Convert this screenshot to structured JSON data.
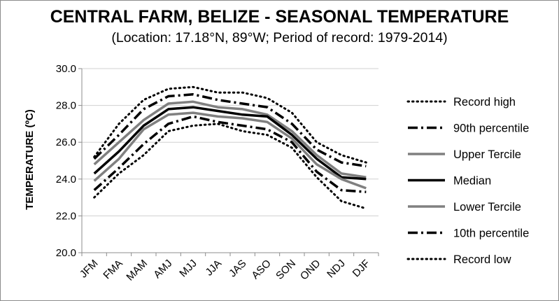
{
  "chart_data": {
    "type": "line",
    "title": "CENTRAL FARM, BELIZE - SEASONAL TEMPERATURE",
    "subtitle": "(Location: 17.18°N, 89°W; Period of record: 1979-2014)",
    "xlabel": "",
    "ylabel": "TEMPERATURE (ºC)",
    "ylim": [
      20.0,
      30.0
    ],
    "yticks": [
      "20.0",
      "22.0",
      "24.0",
      "26.0",
      "28.0",
      "30.0"
    ],
    "ytick_values": [
      20,
      22,
      24,
      26,
      28,
      30
    ],
    "grid": "horizontal",
    "legend_position": "right",
    "categories": [
      "JFM",
      "FMA",
      "MAM",
      "AMJ",
      "MJJ",
      "JJA",
      "JAS",
      "ASO",
      "SON",
      "OND",
      "NDJ",
      "DJF"
    ],
    "series": [
      {
        "name": "Record high",
        "color": "#000000",
        "style": "dotted",
        "values": [
          25.2,
          27.0,
          28.3,
          28.9,
          29.0,
          28.7,
          28.7,
          28.4,
          27.6,
          26.0,
          25.3,
          24.9
        ]
      },
      {
        "name": "90th percentile",
        "color": "#000000",
        "style": "dashdot",
        "values": [
          25.1,
          26.4,
          27.8,
          28.5,
          28.6,
          28.3,
          28.1,
          27.9,
          27.0,
          25.6,
          24.9,
          24.7
        ]
      },
      {
        "name": "Upper Tercile",
        "color": "#808080",
        "style": "solid",
        "values": [
          24.8,
          26.0,
          27.2,
          28.1,
          28.2,
          27.9,
          27.8,
          27.5,
          26.6,
          25.3,
          24.3,
          24.1
        ]
      },
      {
        "name": "Median",
        "color": "#000000",
        "style": "solid",
        "values": [
          24.3,
          25.5,
          26.9,
          27.8,
          27.9,
          27.7,
          27.5,
          27.4,
          26.4,
          25.1,
          24.1,
          24.0
        ]
      },
      {
        "name": "Lower Tercile",
        "color": "#808080",
        "style": "solid",
        "values": [
          23.9,
          25.1,
          26.7,
          27.5,
          27.6,
          27.4,
          27.3,
          27.1,
          26.2,
          24.8,
          24.0,
          23.5
        ]
      },
      {
        "name": "10th percentile",
        "color": "#000000",
        "style": "dashdot",
        "values": [
          23.4,
          24.6,
          25.9,
          27.0,
          27.4,
          27.1,
          26.9,
          26.7,
          26.0,
          24.4,
          23.4,
          23.3
        ]
      },
      {
        "name": "Record low",
        "color": "#000000",
        "style": "dotted",
        "values": [
          23.0,
          24.3,
          25.3,
          26.6,
          26.9,
          27.0,
          26.6,
          26.4,
          25.7,
          24.1,
          22.8,
          22.4
        ]
      }
    ]
  }
}
